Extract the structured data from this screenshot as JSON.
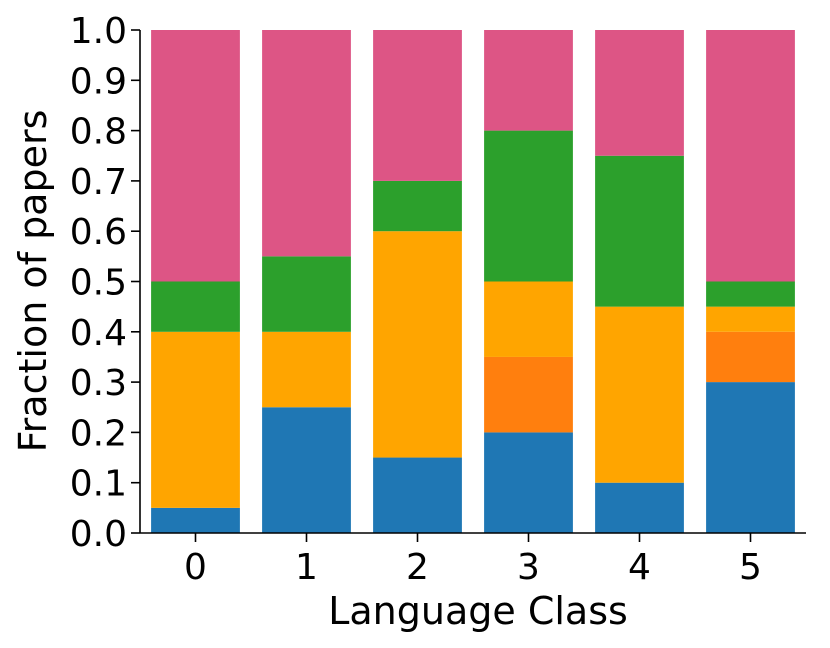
{
  "chart_data": {
    "type": "bar",
    "stacked": true,
    "categories": [
      "0",
      "1",
      "2",
      "3",
      "4",
      "5"
    ],
    "series": [
      {
        "color": "#1f77b4",
        "values": [
          0.05,
          0.25,
          0.15,
          0.2,
          0.1,
          0.3
        ]
      },
      {
        "color": "#ff7f0e",
        "values": [
          0.0,
          0.0,
          0.0,
          0.15,
          0.0,
          0.1
        ]
      },
      {
        "color": "#ffa500",
        "values": [
          0.35,
          0.15,
          0.45,
          0.15,
          0.35,
          0.05
        ]
      },
      {
        "color": "#2ca02c",
        "values": [
          0.1,
          0.15,
          0.1,
          0.3,
          0.3,
          0.05
        ]
      },
      {
        "color": "#dd5585",
        "values": [
          0.5,
          0.45,
          0.3,
          0.2,
          0.25,
          0.5
        ]
      }
    ],
    "title": "",
    "xlabel": "Language Class",
    "ylabel": "Fraction of papers",
    "ylim": [
      0,
      1.0
    ],
    "yticks": [
      "0.0",
      "0.1",
      "0.2",
      "0.3",
      "0.4",
      "0.5",
      "0.6",
      "0.7",
      "0.8",
      "0.9",
      "1.0"
    ],
    "grid": false,
    "legend": "none"
  }
}
